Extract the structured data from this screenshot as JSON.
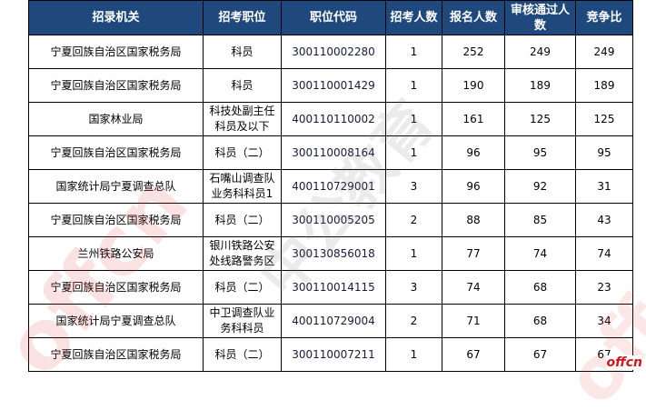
{
  "headers": [
    "招录机关",
    "招考职位",
    "职位代码",
    "招考人数",
    "报名人数",
    "审核通过人数",
    "竞争比"
  ],
  "rows": [
    [
      "宁夏回族自治区国家税务局",
      "科员",
      "300110002280",
      "1",
      "252",
      "249",
      "249"
    ],
    [
      "宁夏回族自治区国家税务局",
      "科员",
      "300110001429",
      "1",
      "190",
      "189",
      "189"
    ],
    [
      "国家林业局",
      "科技处副主任科员及以下",
      "400110110002",
      "1",
      "161",
      "125",
      "125"
    ],
    [
      "宁夏回族自治区国家税务局",
      "科员（二）",
      "300110008164",
      "1",
      "96",
      "95",
      "95"
    ],
    [
      "国家统计局宁夏调查总队",
      "石嘴山调查队业务科科员1",
      "400110729001",
      "3",
      "96",
      "92",
      "31"
    ],
    [
      "宁夏回族自治区国家税务局",
      "科员（二）",
      "300110005205",
      "2",
      "88",
      "85",
      "43"
    ],
    [
      "兰州铁路公安局",
      "银川铁路公安处线路警务区",
      "300130856018",
      "1",
      "77",
      "74",
      "74"
    ],
    [
      "宁夏回族自治区国家税务局",
      "科员（二）",
      "300110014115",
      "3",
      "74",
      "68",
      "23"
    ],
    [
      "国家统计局宁夏调查总队",
      "中卫调查队业务科科员",
      "400110729004",
      "2",
      "71",
      "68",
      "34"
    ],
    [
      "宁夏回族自治区国家税务局",
      "科员（二）",
      "300110007211",
      "1",
      "67",
      "67",
      "67"
    ]
  ],
  "watermark": {
    "left": "offcn",
    "center": "中公教育",
    "logo": "offcn"
  },
  "colors": {
    "header_bg": "#1f497d",
    "header_text": "#ffffff",
    "logo": "#d0161b"
  }
}
